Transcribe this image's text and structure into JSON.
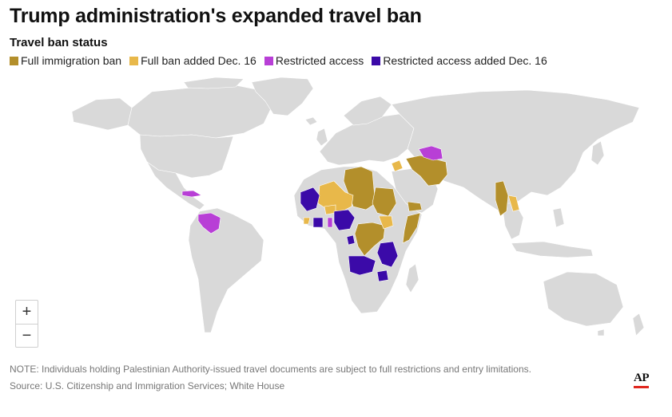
{
  "header": {
    "title": "Trump administration's expanded travel ban",
    "subtitle": "Travel ban status"
  },
  "legend": [
    {
      "label": "Full immigration ban",
      "color": "#b38f2b"
    },
    {
      "label": "Full ban added Dec. 16",
      "color": "#e8b84a"
    },
    {
      "label": "Restricted access",
      "color": "#b83fd6"
    },
    {
      "label": "Restricted access added Dec. 16",
      "color": "#3b0aa8"
    }
  ],
  "colors": {
    "land": "#d9d9d9",
    "border": "#ffffff",
    "full_ban": "#b38f2b",
    "full_ban_dec16": "#e8b84a",
    "restricted": "#b83fd6",
    "restricted_dec16": "#3b0aa8"
  },
  "zoom": {
    "in_label": "+",
    "out_label": "−"
  },
  "footer": {
    "note": "NOTE: Individuals holding Palestinian Authority-issued travel documents are subject to full restrictions and entry limitations.",
    "source": "Source: U.S. Citizenship and Immigration Services; White House",
    "logo": "AP"
  }
}
